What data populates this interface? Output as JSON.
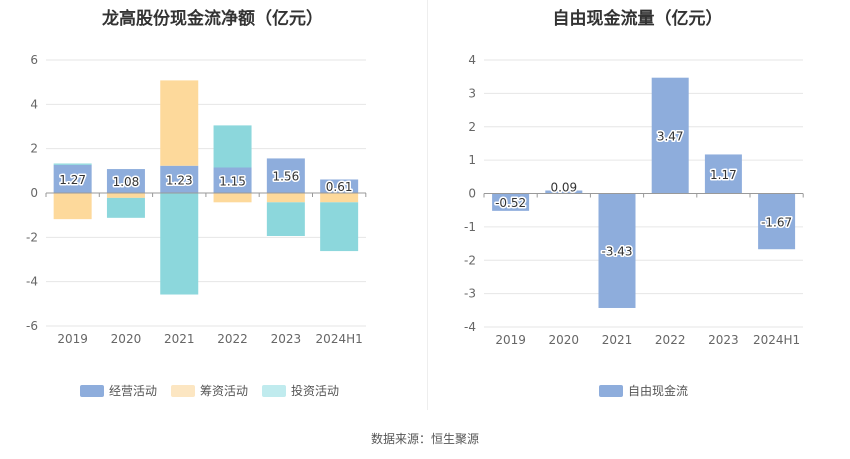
{
  "chart_data": [
    {
      "type": "bar",
      "stacked": true,
      "title": "龙高股份现金流净额（亿元）",
      "categories": [
        "2019",
        "2020",
        "2021",
        "2022",
        "2023",
        "2024H1"
      ],
      "series": [
        {
          "name": "经营活动",
          "color": "#8eaddc",
          "values": [
            1.27,
            1.08,
            1.23,
            1.15,
            1.56,
            0.61
          ]
        },
        {
          "name": "筹资活动",
          "color": "#fdd99b",
          "values": [
            -1.18,
            -0.22,
            3.85,
            -0.42,
            -0.42,
            -0.42
          ]
        },
        {
          "name": "投资活动",
          "color": "#8cd7dc",
          "values": [
            0.06,
            -0.9,
            -4.58,
            1.9,
            -1.52,
            -2.2
          ]
        }
      ],
      "data_labels": [
        "1.27",
        "1.08",
        "1.23",
        "1.15",
        "1.56",
        "0.61"
      ],
      "ylim": [
        -6,
        6
      ],
      "yticks": [
        6,
        4,
        2,
        0,
        -2,
        -4,
        -6
      ],
      "grid": true,
      "legend": "bottom"
    },
    {
      "type": "bar",
      "title": "自由现金流量（亿元）",
      "categories": [
        "2019",
        "2020",
        "2021",
        "2022",
        "2023",
        "2024H1"
      ],
      "series": [
        {
          "name": "自由现金流",
          "color": "#8eaddc",
          "values": [
            -0.52,
            0.09,
            -3.43,
            3.47,
            1.17,
            -1.67
          ]
        }
      ],
      "data_labels": [
        "-0.52",
        "0.09",
        "-3.43",
        "3.47",
        "1.17",
        "-1.67"
      ],
      "ylim": [
        -4,
        4
      ],
      "yticks": [
        4,
        3,
        2,
        1,
        0,
        -1,
        -2,
        -3,
        -4
      ],
      "grid": true,
      "legend": "bottom"
    }
  ],
  "source": "数据来源：恒生聚源"
}
